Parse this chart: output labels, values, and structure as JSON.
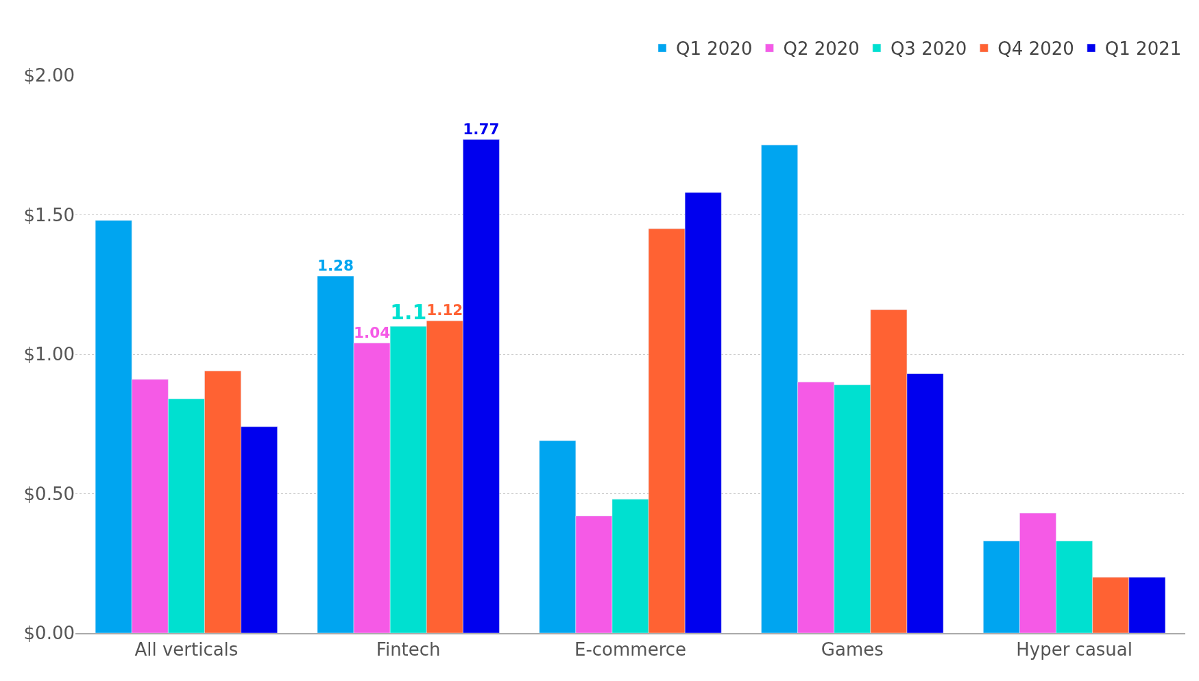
{
  "chart_data": {
    "type": "bar",
    "categories": [
      "All verticals",
      "Fintech",
      "E-commerce",
      "Games",
      "Hyper casual"
    ],
    "series": [
      {
        "name": "Q1 2020",
        "color": "#00a5f0",
        "values": [
          1.48,
          1.28,
          0.69,
          1.75,
          0.33
        ],
        "value_labels": [
          null,
          "1.28",
          null,
          null,
          null
        ]
      },
      {
        "name": "Q2 2020",
        "color": "#f55ae6",
        "values": [
          0.91,
          1.04,
          0.42,
          0.9,
          0.43
        ],
        "value_labels": [
          null,
          "1.04",
          null,
          null,
          null
        ]
      },
      {
        "name": "Q3 2020",
        "color": "#00e0d0",
        "values": [
          0.84,
          1.1,
          0.48,
          0.89,
          0.33
        ],
        "value_labels": [
          null,
          "1.1",
          null,
          null,
          null
        ]
      },
      {
        "name": "Q4 2020",
        "color": "#ff6233",
        "values": [
          0.94,
          1.12,
          1.45,
          1.16,
          0.2
        ],
        "value_labels": [
          null,
          "1.12",
          null,
          null,
          null
        ]
      },
      {
        "name": "Q1 2021",
        "color": "#0000ee",
        "values": [
          0.74,
          1.77,
          1.58,
          0.93,
          0.2
        ],
        "value_labels": [
          null,
          "1.77",
          null,
          null,
          null
        ]
      }
    ],
    "ylim": [
      0,
      2
    ],
    "yticks": [
      {
        "value": 0,
        "label": "$0.00"
      },
      {
        "value": 0.5,
        "label": "$0.50"
      },
      {
        "value": 1,
        "label": "$1.00"
      },
      {
        "value": 1.5,
        "label": "$1.50"
      },
      {
        "value": 2,
        "label": "$2.00"
      }
    ],
    "grid": "y",
    "legend": "top right"
  }
}
